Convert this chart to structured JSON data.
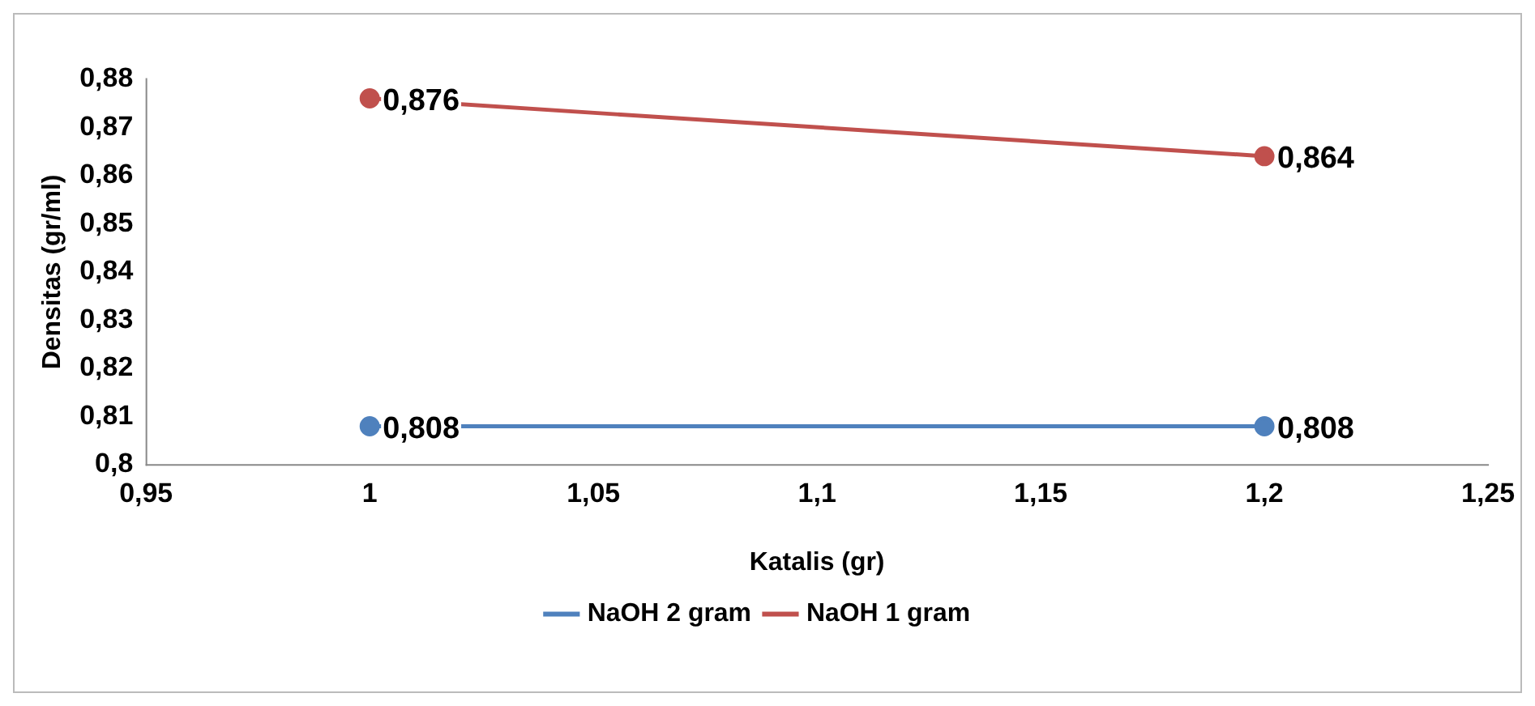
{
  "chart_data": {
    "type": "line",
    "xlabel": "Katalis (gr)",
    "ylabel": "Densitas (gr/ml)",
    "x": [
      1,
      1.2
    ],
    "series": [
      {
        "name": "NaOH 2 gram",
        "color": "#4f81bd",
        "values": [
          0.808,
          0.808
        ],
        "value_labels": [
          "0,808",
          "0,808"
        ]
      },
      {
        "name": "NaOH 1 gram",
        "color": "#c0504d",
        "values": [
          0.876,
          0.864
        ],
        "value_labels": [
          "0,876",
          "0,864"
        ]
      }
    ],
    "xlim": [
      0.95,
      1.25
    ],
    "xticks": [
      {
        "value": 0.95,
        "label": "0,95"
      },
      1,
      {
        "value": 1.05,
        "label": "1,05"
      },
      {
        "value": 1.1,
        "label": "1,1"
      },
      {
        "value": 1.15,
        "label": "1,15"
      },
      {
        "value": 1.2,
        "label": "1,2"
      },
      {
        "value": 1.25,
        "label": "1,25"
      }
    ],
    "ylim": [
      0.8,
      0.88
    ],
    "yticks": [
      {
        "value": 0.8,
        "label": "0,8"
      },
      {
        "value": 0.81,
        "label": "0,81"
      },
      {
        "value": 0.82,
        "label": "0,82"
      },
      {
        "value": 0.83,
        "label": "0,83"
      },
      {
        "value": 0.84,
        "label": "0,84"
      },
      {
        "value": 0.85,
        "label": "0,85"
      },
      {
        "value": 0.86,
        "label": "0,86"
      },
      {
        "value": 0.87,
        "label": "0,87"
      },
      {
        "value": 0.88,
        "label": "0,88"
      }
    ],
    "grid": false,
    "legend": "bottom",
    "marker": "circle",
    "line_style": "solid"
  }
}
